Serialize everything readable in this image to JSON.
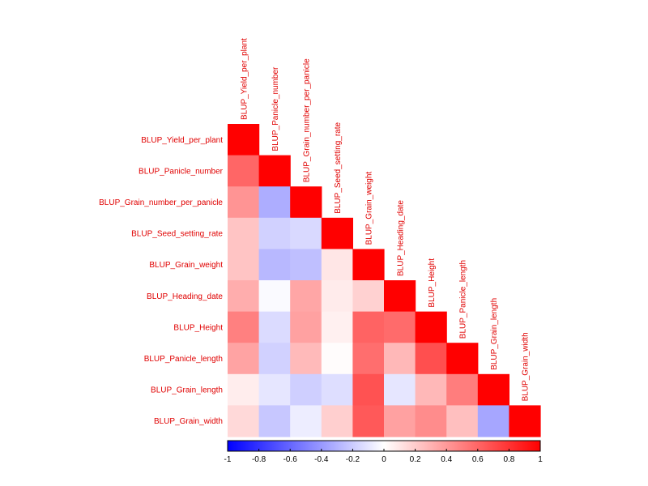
{
  "chart_data": {
    "type": "heatmap",
    "title": "",
    "layout": "lower-triangle",
    "variables": [
      "BLUP_Yield_per_plant",
      "BLUP_Panicle_number",
      "BLUP_Grain_number_per_panicle",
      "BLUP_Seed_setting_rate",
      "BLUP_Grain_weight",
      "BLUP_Heading_date",
      "BLUP_Height",
      "BLUP_Panicle_length",
      "BLUP_Grain_length",
      "BLUP_Grain_width"
    ],
    "matrix": [
      [
        1.0
      ],
      [
        0.6,
        1.0
      ],
      [
        0.42,
        -0.32,
        1.0
      ],
      [
        0.23,
        -0.18,
        -0.15,
        1.0
      ],
      [
        0.23,
        -0.28,
        -0.25,
        0.1,
        1.0
      ],
      [
        0.32,
        -0.02,
        0.35,
        0.08,
        0.18,
        1.0
      ],
      [
        0.5,
        -0.14,
        0.37,
        0.06,
        0.61,
        0.58,
        1.0
      ],
      [
        0.36,
        -0.18,
        0.27,
        0.01,
        0.57,
        0.28,
        0.69,
        1.0
      ],
      [
        0.07,
        -0.1,
        -0.19,
        -0.13,
        0.68,
        -0.1,
        0.28,
        0.51,
        1.0
      ],
      [
        0.15,
        -0.22,
        -0.07,
        0.19,
        0.65,
        0.37,
        0.45,
        0.25,
        -0.35,
        1.0
      ]
    ],
    "color_scale": {
      "min": -1,
      "max": 1,
      "low_color": "#0000ff",
      "mid_color": "#ffffff",
      "high_color": "#ff0000"
    },
    "colorbar_ticks": [
      "-1",
      "-0.8",
      "-0.6",
      "-0.4",
      "-0.2",
      "0",
      "0.2",
      "0.4",
      "0.6",
      "0.8",
      "1"
    ],
    "label_color": "#e00000",
    "legend": "bottom"
  }
}
